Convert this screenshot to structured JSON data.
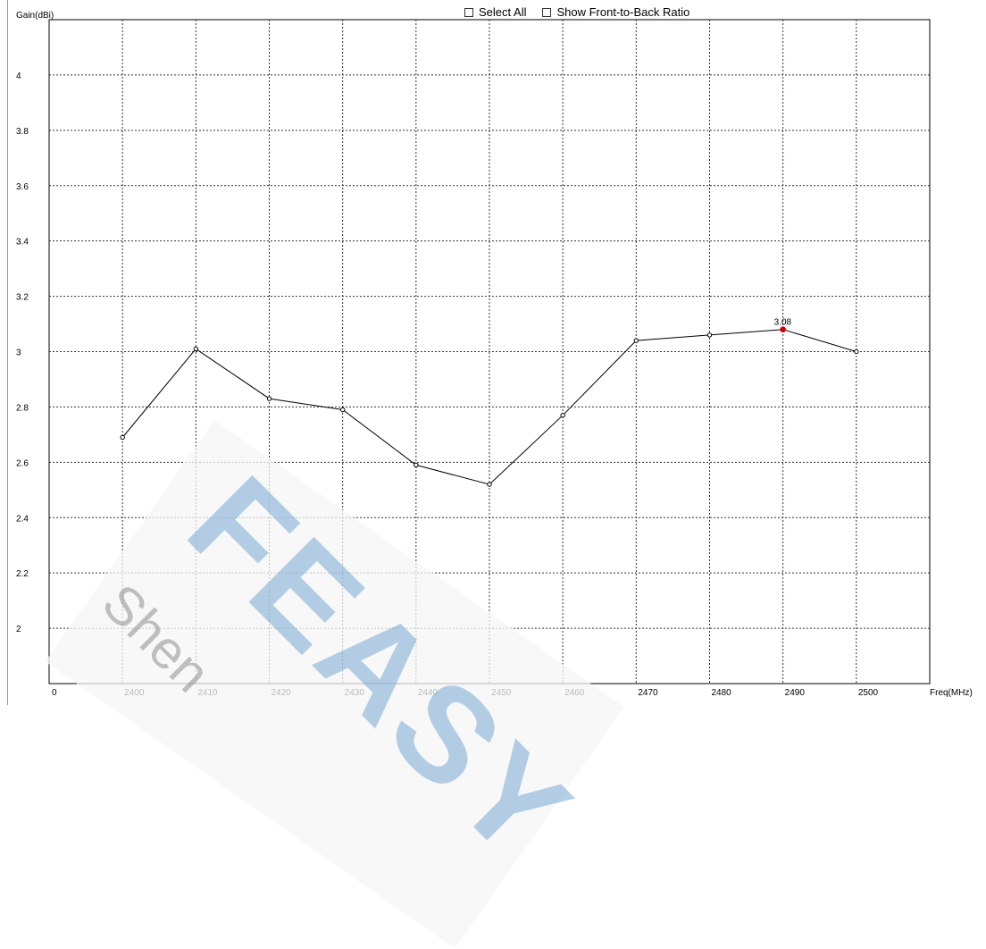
{
  "controls": {
    "select_all": "Select All",
    "show_ftb": "Show Front-to-Back Ratio"
  },
  "chart_data": {
    "type": "line",
    "title": "",
    "xlabel": "Freq(MHz)",
    "ylabel": "Gain(dBi)",
    "xlim": [
      2390,
      2510
    ],
    "ylim": [
      1.8,
      4.2
    ],
    "x_ticks": [
      2400,
      2410,
      2420,
      2430,
      2440,
      2450,
      2460,
      2470,
      2480,
      2490,
      2500
    ],
    "x_origin_label": "0",
    "y_ticks": [
      2,
      2.2,
      2.4,
      2.6,
      2.8,
      3,
      3.2,
      3.4,
      3.6,
      3.8,
      4
    ],
    "grid": true,
    "series": [
      {
        "x": [
          2400,
          2410,
          2420,
          2430,
          2440,
          2450,
          2460,
          2470,
          2480,
          2490,
          2500
        ],
        "values": [
          2.69,
          3.01,
          2.83,
          2.79,
          2.59,
          2.52,
          2.77,
          3.04,
          3.06,
          3.08,
          3.0
        ],
        "color": "#000000"
      }
    ],
    "highlight": {
      "x": 2490,
      "y": 3.08,
      "label": "3.08",
      "color": "#cc0000"
    }
  },
  "watermark": {
    "brand": "FEASY",
    "sub": "Shen"
  }
}
